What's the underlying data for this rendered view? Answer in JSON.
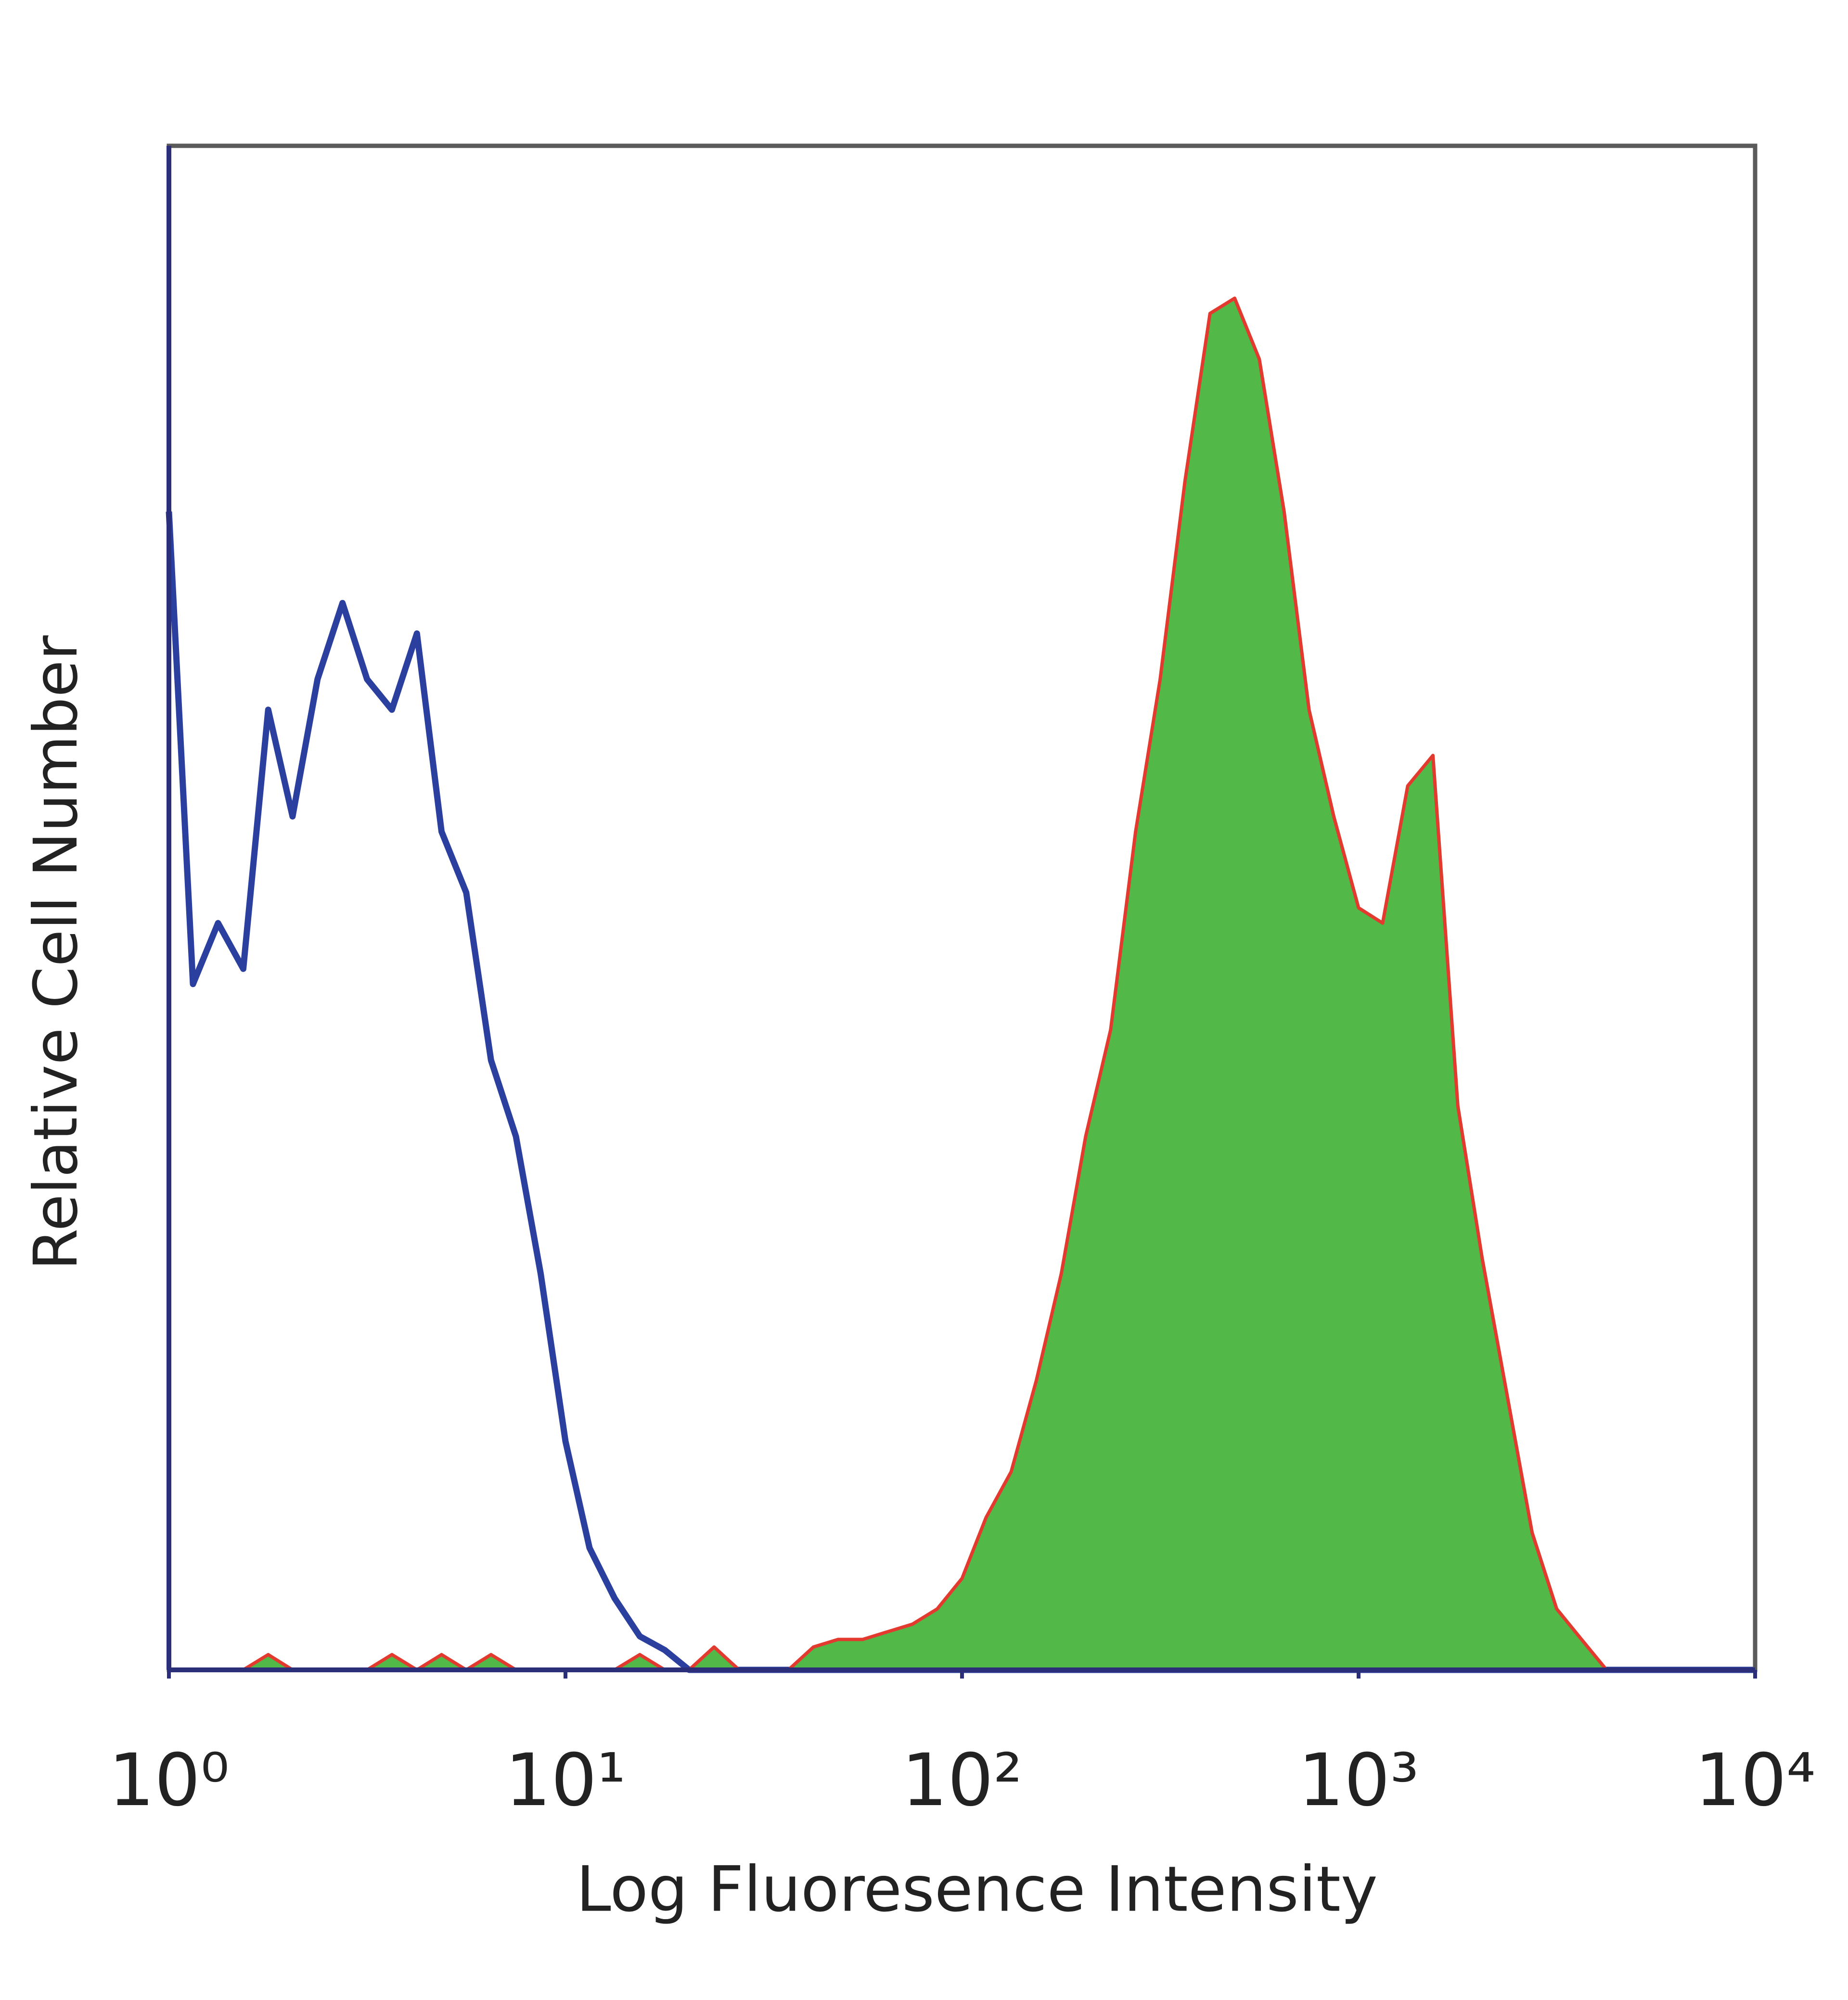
{
  "chart_data": {
    "type": "line",
    "x_label": "Log Fluoresence Intensity",
    "y_label": "Relative Cell Number",
    "xscale": "log",
    "xlim": [
      1,
      10000
    ],
    "ylim": [
      0,
      100
    ],
    "xticks": [
      {
        "value": 1,
        "label": "10⁰"
      },
      {
        "value": 10,
        "label": "10¹"
      },
      {
        "value": 100,
        "label": "10²"
      },
      {
        "value": 1000,
        "label": "10³"
      },
      {
        "value": 10000,
        "label": "10⁴"
      }
    ],
    "x": [
      1,
      1.15,
      1.33,
      1.54,
      1.78,
      2.05,
      2.37,
      2.74,
      3.16,
      3.65,
      4.22,
      4.87,
      5.62,
      6.49,
      7.5,
      8.66,
      10,
      11.5,
      13.3,
      15.4,
      17.8,
      20.5,
      23.7,
      27.4,
      31.6,
      36.5,
      42.2,
      48.7,
      56.2,
      64.9,
      75,
      86.6,
      100,
      115,
      133,
      154,
      178,
      205,
      237,
      274,
      316,
      365,
      422,
      487,
      562,
      649,
      750,
      866,
      1000,
      1150,
      1330,
      1540,
      1780,
      2050,
      2370,
      2740,
      3160,
      3650,
      4220,
      4870,
      5620,
      6490,
      7500,
      8660,
      10000
    ],
    "series": [
      {
        "color": "#2b3f9e",
        "fill": false,
        "values": [
          76,
          45,
          49,
          46,
          63,
          56,
          65,
          70,
          65,
          63,
          68,
          55,
          51,
          40,
          35,
          26,
          15,
          8,
          4.7,
          2.2,
          1.3,
          0,
          0,
          0,
          0,
          0,
          0,
          0,
          0,
          0,
          0,
          0,
          0,
          0,
          0,
          0,
          0,
          0,
          0,
          0,
          0,
          0,
          0,
          0,
          0,
          0,
          0,
          0,
          0,
          0,
          0,
          0,
          0,
          0,
          0,
          0,
          0,
          0,
          0,
          0,
          0,
          0,
          0,
          0,
          0
        ]
      },
      {
        "color": "#52b848",
        "edge_color": "#e23a2e",
        "fill": true,
        "values": [
          0,
          0,
          0,
          0,
          1,
          0,
          0,
          0,
          0,
          1,
          0,
          1,
          0,
          1,
          0,
          0,
          0,
          0,
          0,
          1,
          0,
          0,
          1.5,
          0,
          0,
          0,
          1.5,
          2,
          2,
          2.5,
          3,
          4,
          6,
          10,
          13,
          19,
          26,
          35,
          42,
          55,
          65,
          78,
          89,
          90,
          86,
          76,
          63,
          56,
          50,
          49,
          58,
          60,
          37,
          27,
          18,
          9,
          4,
          2,
          0,
          0,
          0,
          0,
          0,
          0,
          0
        ]
      }
    ]
  }
}
